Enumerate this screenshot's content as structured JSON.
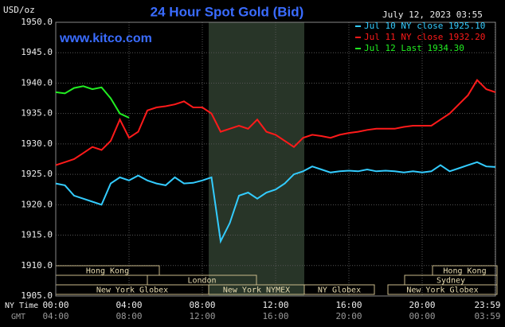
{
  "chart_data": {
    "type": "line",
    "title": "24 Hour Spot Gold (Bid)",
    "subtitle": "www.kitco.com",
    "timestamp": "July 12, 2023 03:55",
    "y_unit": "USD/oz",
    "x_row_labels": [
      "NY Time",
      "GMT"
    ],
    "x": [
      0,
      0.5,
      1,
      1.5,
      2,
      2.5,
      3,
      3.5,
      4,
      4.5,
      5,
      5.5,
      6,
      6.5,
      7,
      7.5,
      8,
      8.5,
      9,
      9.5,
      10,
      10.5,
      11,
      11.5,
      12,
      12.5,
      13,
      13.5,
      14,
      14.5,
      15,
      15.5,
      16,
      16.5,
      17,
      17.5,
      18,
      18.5,
      19,
      19.5,
      20,
      20.5,
      21,
      21.5,
      22,
      22.5,
      23,
      23.5,
      24
    ],
    "series": [
      {
        "name": "Jul 10 NY close 1925.10",
        "color": "#33ccff",
        "values": [
          1923.5,
          1923.2,
          1921.5,
          1921.0,
          1920.5,
          1920.0,
          1923.5,
          1924.5,
          1924.0,
          1924.8,
          1924.0,
          1923.5,
          1923.2,
          1924.5,
          1923.5,
          1923.6,
          1924.0,
          1924.5,
          1914.0,
          1917.0,
          1921.5,
          1922.0,
          1921.0,
          1922.0,
          1922.5,
          1923.5,
          1925.0,
          1925.5,
          1926.3,
          1925.8,
          1925.3,
          1925.5,
          1925.6,
          1925.5,
          1925.8,
          1925.5,
          1925.6,
          1925.5,
          1925.3,
          1925.5,
          1925.3,
          1925.5,
          1926.5,
          1925.5,
          1926.0,
          1926.5,
          1927.0,
          1926.3,
          1926.2
        ]
      },
      {
        "name": "Jul 11 NY close 1932.20",
        "color": "#ff1a1a",
        "values": [
          1926.5,
          1927.0,
          1927.5,
          1928.5,
          1929.5,
          1929.0,
          1930.5,
          1934.0,
          1931.0,
          1932.0,
          1935.5,
          1936.0,
          1936.2,
          1936.5,
          1937.0,
          1936.0,
          1936.0,
          1935.0,
          1932.0,
          1932.5,
          1933.0,
          1932.5,
          1934.0,
          1932.0,
          1931.5,
          1930.5,
          1929.5,
          1931.0,
          1931.5,
          1931.3,
          1931.0,
          1931.5,
          1931.8,
          1932.0,
          1932.3,
          1932.5,
          1932.5,
          1932.5,
          1932.8,
          1933.0,
          1933.0,
          1933.0,
          1934.0,
          1935.0,
          1936.5,
          1938.0,
          1940.5,
          1939.0,
          1938.5
        ]
      },
      {
        "name": "Jul 12 Last 1934.30",
        "color": "#22ee22",
        "values": [
          1938.5,
          1938.3,
          1939.2,
          1939.5,
          1939.0,
          1939.3,
          1937.5,
          1935.0,
          1934.3,
          null,
          null,
          null,
          null,
          null,
          null,
          null,
          null,
          null,
          null,
          null,
          null,
          null,
          null,
          null,
          null,
          null,
          null,
          null,
          null,
          null,
          null,
          null,
          null,
          null,
          null,
          null,
          null,
          null,
          null,
          null,
          null,
          null,
          null,
          null,
          null,
          null,
          null,
          null,
          null
        ]
      }
    ],
    "xlim": [
      0,
      24
    ],
    "xticks": [
      {
        "value": 0,
        "label": "00:00"
      },
      {
        "value": 4,
        "label": "04:00"
      },
      {
        "value": 8,
        "label": "08:00"
      },
      {
        "value": 12,
        "label": "12:00"
      },
      {
        "value": 16,
        "label": "16:00"
      },
      {
        "value": 20,
        "label": "20:00"
      },
      {
        "value": 23.983,
        "label": "23:59"
      }
    ],
    "gmt_ticks": [
      "04:00",
      "08:00",
      "12:00",
      "16:00",
      "20:00",
      "00:00",
      "03:59"
    ],
    "ylim": [
      1905,
      1950
    ],
    "yticks": [
      {
        "value": 1905,
        "label": "1905.0"
      },
      {
        "value": 1910,
        "label": "1910.0"
      },
      {
        "value": 1915,
        "label": "1915.0"
      },
      {
        "value": 1920,
        "label": "1920.0"
      },
      {
        "value": 1925,
        "label": "1925.0"
      },
      {
        "value": 1930,
        "label": "1930.0"
      },
      {
        "value": 1935,
        "label": "1935.0"
      },
      {
        "value": 1940,
        "label": "1940.0"
      },
      {
        "value": 1945,
        "label": "1945.0"
      },
      {
        "value": 1950,
        "label": "1950.0"
      }
    ],
    "grid": true,
    "sessions": [
      "Hong Kong",
      "Hong Kong",
      "London",
      "Sydney",
      "New York Globex",
      "New York NYMEX",
      "NY Globex",
      "New York Globex"
    ]
  }
}
